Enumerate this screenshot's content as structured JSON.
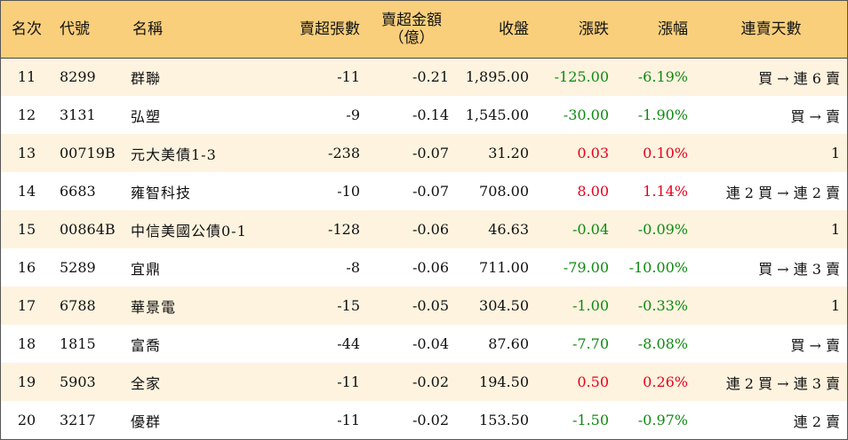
{
  "colors": {
    "header_bg": "#f9cf7c",
    "row_alt_bg": "#fdf3df",
    "up": "#e8001d",
    "down": "#0f8a12"
  },
  "headers": {
    "rank": "名次",
    "code": "代號",
    "name": "名稱",
    "net_sell_lots": "賣超張數",
    "net_sell_amount_l1": "賣超金額",
    "net_sell_amount_l2": "（億）",
    "close": "收盤",
    "change": "漲跌",
    "change_pct": "漲幅",
    "streak": "連賣天數"
  },
  "rows": [
    {
      "rank": "11",
      "code": "8299",
      "name": "群聯",
      "lots": "-11",
      "amount": "-0.21",
      "close": "1,895.00",
      "change": "-125.00",
      "pct": "-6.19%",
      "streak": "買 → 連 6 賣",
      "dir": "down"
    },
    {
      "rank": "12",
      "code": "3131",
      "name": "弘塑",
      "lots": "-9",
      "amount": "-0.14",
      "close": "1,545.00",
      "change": "-30.00",
      "pct": "-1.90%",
      "streak": "買 → 賣",
      "dir": "down"
    },
    {
      "rank": "13",
      "code": "00719B",
      "name": "元大美債1-3",
      "lots": "-238",
      "amount": "-0.07",
      "close": "31.20",
      "change": "0.03",
      "pct": "0.10%",
      "streak": "1",
      "dir": "up"
    },
    {
      "rank": "14",
      "code": "6683",
      "name": "雍智科技",
      "lots": "-10",
      "amount": "-0.07",
      "close": "708.00",
      "change": "8.00",
      "pct": "1.14%",
      "streak": "連 2 買 → 連 2 賣",
      "dir": "up"
    },
    {
      "rank": "15",
      "code": "00864B",
      "name": "中信美國公債0-1",
      "lots": "-128",
      "amount": "-0.06",
      "close": "46.63",
      "change": "-0.04",
      "pct": "-0.09%",
      "streak": "1",
      "dir": "down"
    },
    {
      "rank": "16",
      "code": "5289",
      "name": "宜鼎",
      "lots": "-8",
      "amount": "-0.06",
      "close": "711.00",
      "change": "-79.00",
      "pct": "-10.00%",
      "streak": "買 → 連 3 賣",
      "dir": "down"
    },
    {
      "rank": "17",
      "code": "6788",
      "name": "華景電",
      "lots": "-15",
      "amount": "-0.05",
      "close": "304.50",
      "change": "-1.00",
      "pct": "-0.33%",
      "streak": "1",
      "dir": "down"
    },
    {
      "rank": "18",
      "code": "1815",
      "name": "富喬",
      "lots": "-44",
      "amount": "-0.04",
      "close": "87.60",
      "change": "-7.70",
      "pct": "-8.08%",
      "streak": "買 → 賣",
      "dir": "down"
    },
    {
      "rank": "19",
      "code": "5903",
      "name": "全家",
      "lots": "-11",
      "amount": "-0.02",
      "close": "194.50",
      "change": "0.50",
      "pct": "0.26%",
      "streak": "連 2 買 → 連 3 賣",
      "dir": "up"
    },
    {
      "rank": "20",
      "code": "3217",
      "name": "優群",
      "lots": "-11",
      "amount": "-0.02",
      "close": "153.50",
      "change": "-1.50",
      "pct": "-0.97%",
      "streak": "連 2 賣",
      "dir": "down"
    }
  ]
}
